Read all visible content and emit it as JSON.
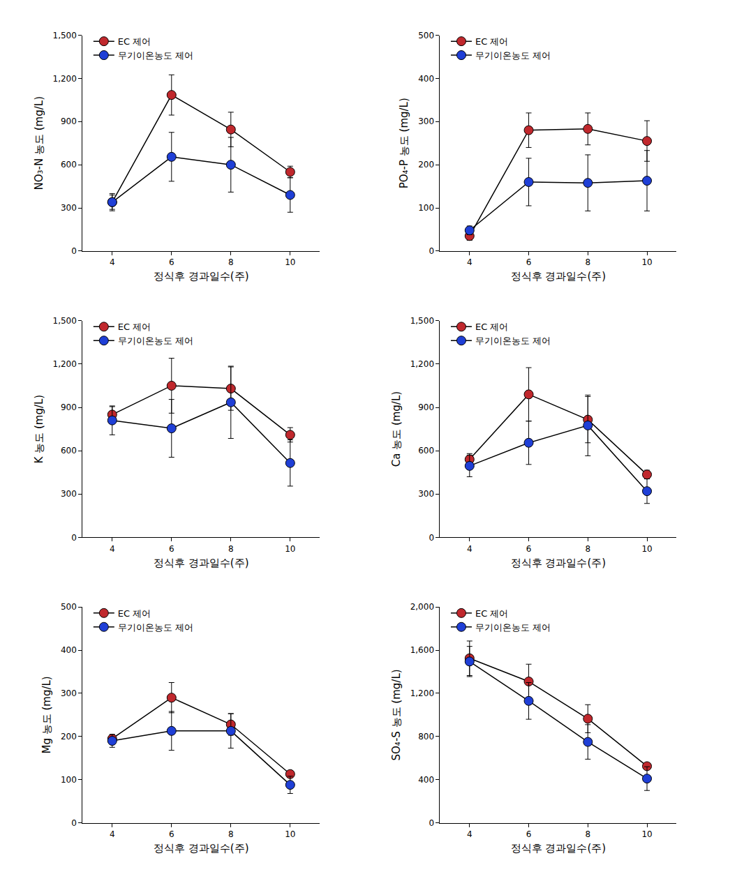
{
  "chart_data": [
    {
      "type": "line",
      "xlabel": "정식후 경과일수(주)",
      "ylabel": "NO₃-N 농도 (mg/L)",
      "x": [
        4,
        6,
        8,
        10
      ],
      "xlim": [
        3,
        11
      ],
      "xticks": [
        4,
        6,
        8,
        10
      ],
      "ylim": [
        0,
        1500
      ],
      "yticks": [
        0,
        300,
        600,
        900,
        {
          "value": 1200,
          "label": "1,200"
        },
        {
          "value": 1500,
          "label": "1,500"
        }
      ],
      "grid": false,
      "legend": "upper left",
      "series": [
        {
          "name": "EC 제어",
          "color": "#c0282d",
          "marker": "circle",
          "line_style": "solid",
          "values": [
            340,
            1085,
            845,
            550
          ],
          "errors": [
            60,
            140,
            120,
            40
          ]
        },
        {
          "name": "무기이온농도 제어",
          "color": "#1f3fd6",
          "marker": "circle",
          "line_style": "solid",
          "values": [
            340,
            655,
            600,
            390
          ],
          "errors": [
            50,
            170,
            190,
            120
          ]
        }
      ]
    },
    {
      "type": "line",
      "xlabel": "정식후 경과일수(주)",
      "ylabel": "PO₄-P 농도 (mg/L)",
      "x": [
        4,
        6,
        8,
        10
      ],
      "xlim": [
        3,
        11
      ],
      "xticks": [
        4,
        6,
        8,
        10
      ],
      "ylim": [
        0,
        500
      ],
      "yticks": [
        0,
        100,
        200,
        300,
        400,
        500
      ],
      "grid": false,
      "legend": "upper left",
      "series": [
        {
          "name": "EC 제어",
          "color": "#c0282d",
          "marker": "circle",
          "line_style": "solid",
          "values": [
            35,
            280,
            283,
            255
          ],
          "errors": [
            10,
            40,
            37,
            47
          ]
        },
        {
          "name": "무기이온농도 제어",
          "color": "#1f3fd6",
          "marker": "circle",
          "line_style": "solid",
          "values": [
            48,
            160,
            158,
            163
          ],
          "errors": [
            10,
            55,
            65,
            70
          ]
        }
      ]
    },
    {
      "type": "line",
      "xlabel": "정식후 경과일수(주)",
      "ylabel": "K 농도 (mg/L)",
      "x": [
        4,
        6,
        8,
        10
      ],
      "xlim": [
        3,
        11
      ],
      "xticks": [
        4,
        6,
        8,
        10
      ],
      "ylim": [
        0,
        1500
      ],
      "yticks": [
        0,
        300,
        600,
        900,
        {
          "value": 1200,
          "label": "1,200"
        },
        {
          "value": 1500,
          "label": "1,500"
        }
      ],
      "grid": false,
      "legend": "upper left",
      "series": [
        {
          "name": "EC 제어",
          "color": "#c0282d",
          "marker": "circle",
          "line_style": "solid",
          "values": [
            850,
            1050,
            1030,
            710
          ],
          "errors": [
            55,
            190,
            150,
            50
          ]
        },
        {
          "name": "무기이온농도 제어",
          "color": "#1f3fd6",
          "marker": "circle",
          "line_style": "solid",
          "values": [
            810,
            755,
            935,
            515
          ],
          "errors": [
            100,
            200,
            250,
            160
          ]
        }
      ]
    },
    {
      "type": "line",
      "xlabel": "정식후 경과일수(주)",
      "ylabel": "Ca 농도 (mg/L)",
      "x": [
        4,
        6,
        8,
        10
      ],
      "xlim": [
        3,
        11
      ],
      "xticks": [
        4,
        6,
        8,
        10
      ],
      "ylim": [
        0,
        1500
      ],
      "yticks": [
        0,
        300,
        600,
        900,
        {
          "value": 1200,
          "label": "1,200"
        },
        {
          "value": 1500,
          "label": "1,500"
        }
      ],
      "grid": false,
      "legend": "upper left",
      "series": [
        {
          "name": "EC 제어",
          "color": "#c0282d",
          "marker": "circle",
          "line_style": "solid",
          "values": [
            540,
            990,
            815,
            435
          ],
          "errors": [
            40,
            185,
            160,
            30
          ]
        },
        {
          "name": "무기이온농도 제어",
          "color": "#1f3fd6",
          "marker": "circle",
          "line_style": "solid",
          "values": [
            495,
            655,
            775,
            320
          ],
          "errors": [
            75,
            150,
            210,
            85
          ]
        }
      ]
    },
    {
      "type": "line",
      "xlabel": "정식후 경과일수(주)",
      "ylabel": "Mg 농도 (mg/L)",
      "x": [
        4,
        6,
        8,
        10
      ],
      "xlim": [
        3,
        11
      ],
      "xticks": [
        4,
        6,
        8,
        10
      ],
      "ylim": [
        0,
        500
      ],
      "yticks": [
        0,
        100,
        200,
        300,
        400,
        500
      ],
      "grid": false,
      "legend": "upper left",
      "series": [
        {
          "name": "EC 제어",
          "color": "#c0282d",
          "marker": "circle",
          "line_style": "solid",
          "values": [
            195,
            290,
            228,
            113
          ],
          "errors": [
            8,
            35,
            25,
            8
          ]
        },
        {
          "name": "무기이온농도 제어",
          "color": "#1f3fd6",
          "marker": "circle",
          "line_style": "solid",
          "values": [
            190,
            213,
            213,
            88
          ],
          "errors": [
            15,
            45,
            40,
            20
          ]
        }
      ]
    },
    {
      "type": "line",
      "xlabel": "정식후 경과일수(주)",
      "ylabel": "SO₄-S 농도 (mg/L)",
      "x": [
        4,
        6,
        8,
        10
      ],
      "xlim": [
        3,
        11
      ],
      "xticks": [
        4,
        6,
        8,
        10
      ],
      "ylim": [
        0,
        2000
      ],
      "yticks": [
        0,
        400,
        800,
        {
          "value": 1200,
          "label": "1,200"
        },
        {
          "value": 1600,
          "label": "1,600"
        },
        {
          "value": 2000,
          "label": "2,000"
        }
      ],
      "grid": false,
      "legend": "upper left",
      "series": [
        {
          "name": "EC 제어",
          "color": "#c0282d",
          "marker": "circle",
          "line_style": "solid",
          "values": [
            1525,
            1310,
            965,
            525
          ],
          "errors": [
            160,
            160,
            130,
            30
          ]
        },
        {
          "name": "무기이온농도 제어",
          "color": "#1f3fd6",
          "marker": "circle",
          "line_style": "solid",
          "values": [
            1495,
            1130,
            750,
            410
          ],
          "errors": [
            140,
            170,
            160,
            110
          ]
        }
      ]
    }
  ]
}
